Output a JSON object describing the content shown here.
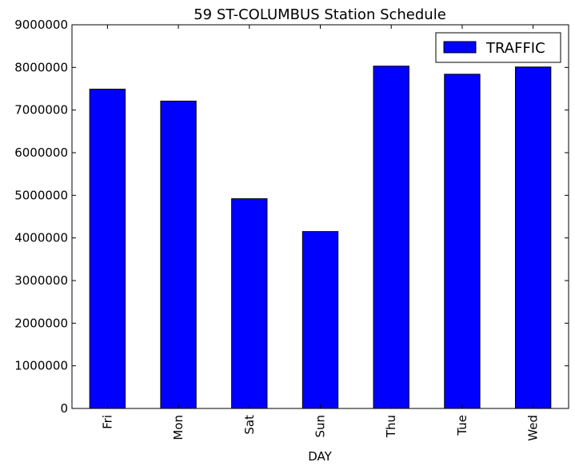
{
  "chart_data": {
    "type": "bar",
    "title": "59 ST-COLUMBUS Station Schedule",
    "xlabel": "DAY",
    "ylabel": "",
    "categories": [
      "Fri",
      "Mon",
      "Sat",
      "Sun",
      "Thu",
      "Tue",
      "Wed"
    ],
    "series": [
      {
        "name": "TRAFFIC",
        "values": [
          7490000,
          7210000,
          4920000,
          4150000,
          8030000,
          7840000,
          8010000
        ],
        "color": "#0000ff"
      }
    ],
    "ylim": [
      0,
      9000000
    ],
    "yticks": [
      0,
      1000000,
      2000000,
      3000000,
      4000000,
      5000000,
      6000000,
      7000000,
      8000000,
      9000000
    ],
    "ytick_labels": [
      "0",
      "1000000",
      "2000000",
      "3000000",
      "4000000",
      "5000000",
      "6000000",
      "7000000",
      "8000000",
      "9000000"
    ],
    "grid": false,
    "legend_position": "top-right",
    "x_tick_rotation": "vertical"
  }
}
